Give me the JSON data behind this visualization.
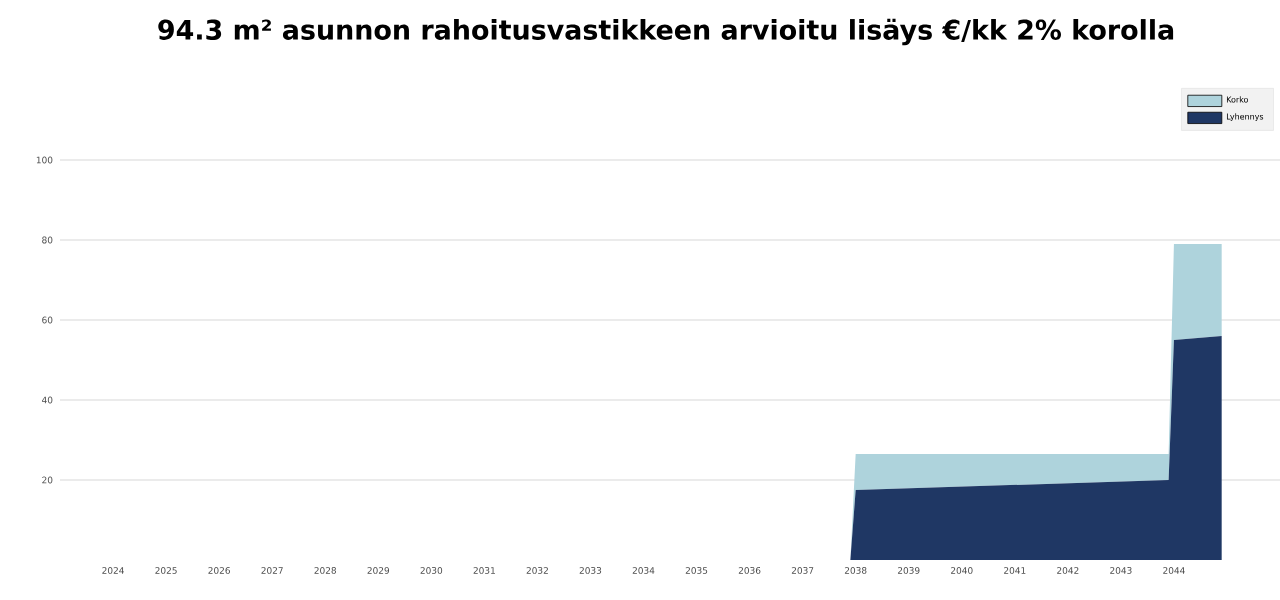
{
  "chart_data": {
    "type": "area",
    "title": "94.3 m² asunnon rahoitusvastikkeen arvioitu lisäys €/kk   2% korolla",
    "stacked": true,
    "x": [
      2024,
      2037.9,
      2038,
      2043.9,
      2044,
      2044.9
    ],
    "series": [
      {
        "name": "Lyhennys",
        "color": "#1f3764",
        "values": [
          0,
          0,
          17.5,
          20,
          55,
          56
        ]
      },
      {
        "name": "Korko",
        "color": "#aed3dc",
        "values": [
          0,
          0,
          9,
          6.5,
          24,
          23
        ]
      }
    ],
    "xlim": [
      2023,
      2046
    ],
    "ylim": [
      0,
      100
    ],
    "xticks": [
      2024,
      2025,
      2026,
      2027,
      2028,
      2029,
      2030,
      2031,
      2032,
      2033,
      2034,
      2035,
      2036,
      2037,
      2038,
      2039,
      2040,
      2041,
      2042,
      2043,
      2044
    ],
    "yticks": [
      20,
      40,
      60,
      80,
      100
    ],
    "grid": "y",
    "legend": "top right"
  }
}
